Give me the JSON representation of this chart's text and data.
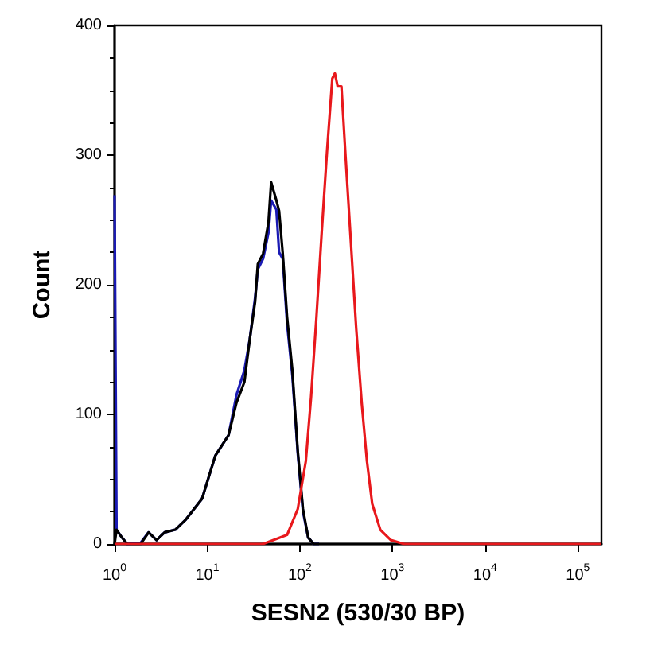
{
  "chart_data": {
    "type": "line",
    "xlabel": "SESN2 (530/30 BP)",
    "ylabel": "Count",
    "log": "x",
    "marker": "none",
    "grid": false,
    "xlim": [
      1,
      180000
    ],
    "xticks": [
      {
        "value": 1,
        "label": "10$^{0}$"
      },
      {
        "value": 10,
        "label": "10$^{1}$"
      },
      {
        "value": 100,
        "label": "10$^{2}$"
      },
      {
        "value": 1000,
        "label": "10$^{3}$"
      },
      {
        "value": 10000,
        "label": "10$^{4}$"
      },
      {
        "value": 100000,
        "label": "10$^{5}$"
      }
    ],
    "ylim": [
      0,
      400
    ],
    "yticks": [
      0,
      100,
      200,
      300,
      400
    ],
    "series": [
      {
        "color": "#1a1ab4",
        "x": [
          1,
          1.05,
          1.2,
          1.37,
          1.91,
          2.33,
          2.84,
          3.47,
          4.52,
          5.9,
          8.8,
          12.2,
          17,
          20.7,
          25.2,
          28.8,
          32.9,
          35.2,
          40.1,
          45.8,
          49,
          55.8,
          59.7,
          65.4,
          72.8,
          83,
          94.9,
          108,
          123,
          141,
          161
        ],
        "values": [
          269,
          11,
          5,
          0,
          1,
          9,
          3,
          9,
          11,
          19,
          35,
          68,
          84,
          115,
          134,
          158,
          190,
          212,
          220,
          240,
          265,
          258,
          225,
          220,
          170,
          130,
          70,
          25,
          5,
          0,
          0
        ]
      },
      {
        "color": "#000000",
        "x": [
          1,
          1.05,
          1.2,
          1.37,
          1.91,
          2.33,
          2.84,
          3.47,
          4.52,
          5.9,
          8.8,
          12.2,
          17,
          20.7,
          25.2,
          28.8,
          32.9,
          35.2,
          40.1,
          45.8,
          49,
          55.8,
          59.7,
          65.4,
          72.8,
          83,
          94.9,
          108,
          123,
          141,
          161
        ],
        "values": [
          0,
          11,
          5,
          0,
          0,
          9,
          3,
          9,
          11,
          19,
          35,
          68,
          84,
          109,
          125,
          158,
          187,
          216,
          224,
          248,
          279,
          265,
          257,
          224,
          175,
          134,
          72,
          27,
          5,
          0,
          0
        ]
      },
      {
        "color": "#e8181c",
        "x": [
          1,
          40,
          72.8,
          94.9,
          116,
          132,
          151,
          172,
          196,
          224,
          239,
          256,
          281,
          312,
          356,
          406,
          465,
          530,
          604,
          738,
          961,
          1336,
          180000
        ],
        "values": [
          0,
          0,
          7,
          27,
          64,
          113,
          175,
          240,
          302,
          359,
          363,
          353,
          353,
          298,
          232,
          166,
          109,
          64,
          31,
          11,
          3,
          0,
          0
        ]
      }
    ]
  }
}
